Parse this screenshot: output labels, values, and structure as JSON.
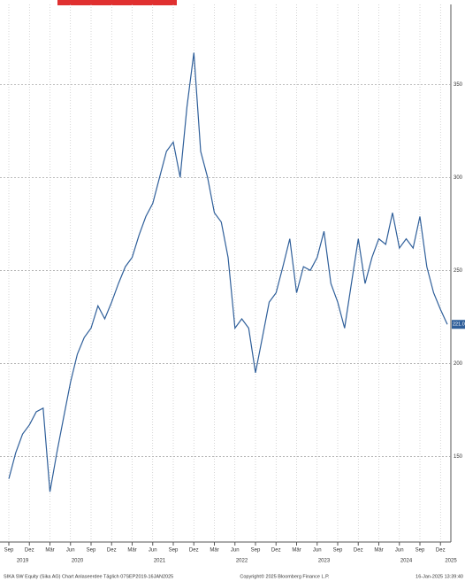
{
  "chart_data": {
    "type": "line",
    "x": [
      "2019-09",
      "2019-10",
      "2019-11",
      "2019-12",
      "2020-01",
      "2020-02",
      "2020-03",
      "2020-04",
      "2020-05",
      "2020-06",
      "2020-07",
      "2020-08",
      "2020-09",
      "2020-10",
      "2020-11",
      "2020-12",
      "2021-01",
      "2021-02",
      "2021-03",
      "2021-04",
      "2021-05",
      "2021-06",
      "2021-07",
      "2021-08",
      "2021-09",
      "2021-10",
      "2021-11",
      "2021-12",
      "2022-01",
      "2022-02",
      "2022-03",
      "2022-04",
      "2022-05",
      "2022-06",
      "2022-07",
      "2022-08",
      "2022-09",
      "2022-10",
      "2022-11",
      "2022-12",
      "2023-01",
      "2023-02",
      "2023-03",
      "2023-04",
      "2023-05",
      "2023-06",
      "2023-07",
      "2023-08",
      "2023-09",
      "2023-10",
      "2023-11",
      "2023-12",
      "2024-01",
      "2024-02",
      "2024-03",
      "2024-04",
      "2024-05",
      "2024-06",
      "2024-07",
      "2024-08",
      "2024-09",
      "2024-10",
      "2024-11",
      "2024-12",
      "2025-01"
    ],
    "series": [
      {
        "name": "SIKA SW Equity",
        "color": "#2f5f9a",
        "values": [
          138,
          152,
          162,
          167,
          174,
          176,
          131,
          152,
          171,
          190,
          205,
          214,
          219,
          231,
          224,
          233,
          243,
          252,
          257,
          269,
          279,
          286,
          300,
          314,
          319,
          300,
          338,
          367,
          314,
          300,
          281,
          276,
          257,
          219,
          224,
          219,
          195,
          214,
          233,
          238,
          252,
          267,
          238,
          252,
          250,
          257,
          271,
          243,
          233,
          219,
          243,
          267,
          243,
          257,
          267,
          264,
          281,
          262,
          267,
          262,
          279,
          252,
          238,
          229,
          221
        ],
        "value_labels": [
          null,
          null,
          null,
          null,
          null,
          null,
          null,
          null,
          null,
          null,
          null,
          null,
          null,
          null,
          null,
          null,
          null,
          null,
          null,
          null,
          null,
          null,
          null,
          null,
          null,
          null,
          null,
          null,
          null,
          null,
          null,
          null,
          null,
          null,
          null,
          null,
          null,
          null,
          null,
          null,
          null,
          null,
          null,
          null,
          null,
          null,
          null,
          null,
          null,
          null,
          null,
          null,
          null,
          null,
          null,
          null,
          null,
          null,
          null,
          null,
          null,
          null,
          null,
          null,
          "221.0"
        ]
      }
    ],
    "ylim": [
      104,
      393
    ],
    "yticks": [
      150,
      200,
      250,
      300,
      350
    ],
    "grid": true,
    "xticks": [
      {
        "value": "2019-09",
        "label": "Sep"
      },
      {
        "value": "2019-12",
        "label": "Dez"
      },
      {
        "value": "2020-03",
        "label": "Mär"
      },
      {
        "value": "2020-06",
        "label": "Jun"
      },
      {
        "value": "2020-09",
        "label": "Sep"
      },
      {
        "value": "2020-12",
        "label": "Dez"
      },
      {
        "value": "2021-03",
        "label": "Mär"
      },
      {
        "value": "2021-06",
        "label": "Jun"
      },
      {
        "value": "2021-09",
        "label": "Sep"
      },
      {
        "value": "2021-12",
        "label": "Dez"
      },
      {
        "value": "2022-03",
        "label": "Mär"
      },
      {
        "value": "2022-06",
        "label": "Jun"
      },
      {
        "value": "2022-09",
        "label": "Sep"
      },
      {
        "value": "2022-12",
        "label": "Dez"
      },
      {
        "value": "2023-03",
        "label": "Mär"
      },
      {
        "value": "2023-06",
        "label": "Jun"
      },
      {
        "value": "2023-09",
        "label": "Sep"
      },
      {
        "value": "2023-12",
        "label": "Dez"
      },
      {
        "value": "2024-03",
        "label": "Mär"
      },
      {
        "value": "2024-06",
        "label": "Jun"
      },
      {
        "value": "2024-09",
        "label": "Sep"
      },
      {
        "value": "2024-12",
        "label": "Dez"
      }
    ],
    "year_labels": [
      "2019",
      "2020",
      "2021",
      "2022",
      "2023",
      "2024",
      "2025"
    ],
    "footer_left": "SIKA SW Equity (Sika AG) Chart Anlaseerdee Täglich 07SEP2019-16JAN2025",
    "footer_center": "Copyright© 2025 Bloomberg Finance L.P.",
    "footer_right": "16-Jan-2025 13:39:40"
  }
}
